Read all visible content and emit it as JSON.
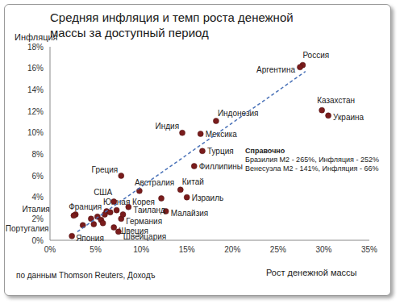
{
  "chart_data": {
    "type": "scatter",
    "title": "Средняя инфляция и темп роста денежной массы за доступный период",
    "x_label": "Рост денежной массы",
    "y_label": "Инфляция",
    "source": "по данным Thomson Reuters, Доходъ",
    "annotations": [
      "Справочно",
      "Бразилия M2 - 265%, Инфляция - 252%",
      "Венесуэла M2 - 141%, Инфляция - 66%"
    ],
    "xlim": [
      0,
      35
    ],
    "ylim": [
      0,
      18
    ],
    "xticks": [
      {
        "value": 0,
        "label": "0%"
      },
      {
        "value": 5,
        "label": "5%"
      },
      {
        "value": 10,
        "label": "10%"
      },
      {
        "value": 15,
        "label": "15%"
      },
      {
        "value": 20,
        "label": "20%"
      },
      {
        "value": 25,
        "label": "25%"
      },
      {
        "value": 30,
        "label": "30%"
      },
      {
        "value": 35,
        "label": "35%"
      }
    ],
    "yticks": [
      {
        "value": 0,
        "label": "0%"
      },
      {
        "value": 2,
        "label": "2%"
      },
      {
        "value": 4,
        "label": "4%"
      },
      {
        "value": 6,
        "label": "6%"
      },
      {
        "value": 8,
        "label": "8%"
      },
      {
        "value": 10,
        "label": "10%"
      },
      {
        "value": 12,
        "label": "12%"
      },
      {
        "value": 14,
        "label": "14%"
      },
      {
        "value": 16,
        "label": "16%"
      },
      {
        "value": 18,
        "label": "18%"
      }
    ],
    "grid": false,
    "series": [
      {
        "type": "scatter",
        "marker": "circle",
        "color": "#7a1c1c",
        "x": [
          27.7,
          27.4,
          18.2,
          14.5,
          16.5,
          16.7,
          15.8,
          29.8,
          30.5,
          7.8,
          9.8,
          14.3,
          15.0,
          12.2,
          12.7,
          7.0,
          6.2,
          2.8,
          2.6,
          8.6,
          7.8,
          7.0,
          7.5,
          2.4,
          4.5,
          5.2,
          5.6,
          6.0,
          6.6,
          7.3,
          4.8,
          5.8,
          8.0,
          3.6
        ],
        "values": [
          16.3,
          16.1,
          11.1,
          10.0,
          9.9,
          8.3,
          6.9,
          12.1,
          11.6,
          6.0,
          4.6,
          4.7,
          4.0,
          3.9,
          2.7,
          3.6,
          2.7,
          2.4,
          2.3,
          3.1,
          2.0,
          1.2,
          0.8,
          0.4,
          2.0,
          2.2,
          1.9,
          2.4,
          2.6,
          2.8,
          1.5,
          1.6,
          2.4,
          1.4
        ],
        "labels": [
          "Россия",
          "Аргентина",
          "Индонезия",
          "Индия",
          "Мексика",
          "Турция",
          "Филлипины",
          "Казахстан",
          "Украина",
          "Греция",
          "Австралия",
          "Китай",
          "Израиль",
          "Южная Корея",
          "Малайзия",
          "США",
          "Франция",
          "Италия",
          "Португалия",
          "Таиланд",
          "Германия",
          "Швеция",
          "Швейцария",
          "Япония",
          null,
          null,
          null,
          null,
          null,
          null,
          null,
          null,
          null,
          null
        ]
      },
      {
        "type": "line",
        "line_style": "dashed",
        "color": "#4a72b8",
        "x": [
          3,
          28
        ],
        "values": [
          0.8,
          15.7
        ]
      }
    ]
  }
}
